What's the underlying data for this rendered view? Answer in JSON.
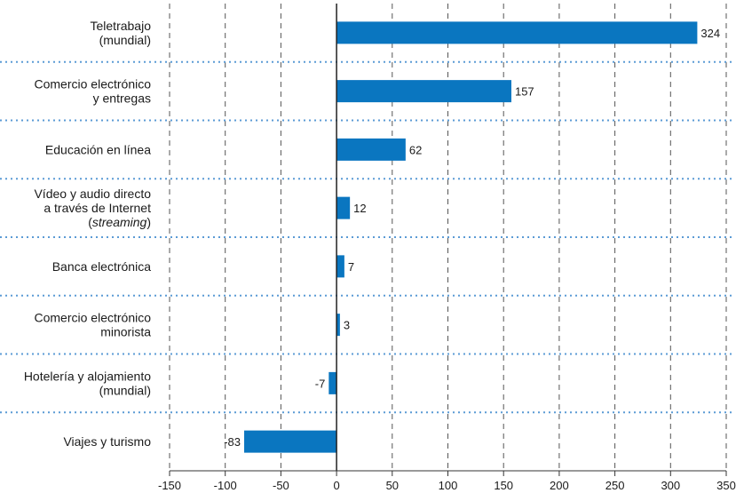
{
  "chart_data": {
    "type": "bar",
    "orientation": "horizontal",
    "categories": [
      [
        "Teletrabajo",
        "(mundial)"
      ],
      [
        "Comercio electrónico",
        "y entregas"
      ],
      [
        "Educación en línea"
      ],
      [
        "Vídeo y audio directo",
        "a través de Internet",
        "(streaming)"
      ],
      [
        "Banca electrónica"
      ],
      [
        "Comercio electrónico",
        "minorista"
      ],
      [
        "Hotelería y alojamiento",
        "(mundial)"
      ],
      [
        "Viajes y turismo"
      ]
    ],
    "values": [
      324,
      157,
      62,
      12,
      7,
      3,
      -7,
      -83
    ],
    "xlim": [
      -150,
      350
    ],
    "xticks": [
      -150,
      -100,
      -50,
      0,
      50,
      100,
      150,
      200,
      250,
      300,
      350
    ],
    "grid": true,
    "bar_color": "#0a76c0",
    "grid_color": "#555555",
    "separator_color": "#5b9bd5"
  }
}
